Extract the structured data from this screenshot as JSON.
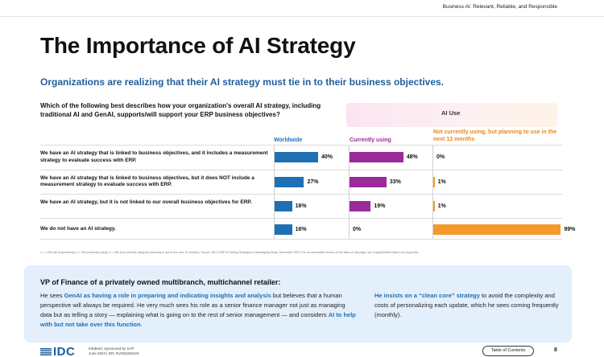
{
  "header": {
    "right_text": "Business AI: Relevant, Reliable, and Responsible"
  },
  "title": "The Importance of AI Strategy",
  "subtitle": "Organizations are realizing that their AI strategy must tie in to their business objectives.",
  "question": "Which of the following best describes how your organization's overall AI strategy, including traditional AI and GenAI, supports/will support your ERP business objectives?",
  "chart_data": {
    "type": "bar",
    "group_label": "AI Use",
    "categories": [
      "We have an AI strategy that is linked to business objectives, and it includes a measurement strategy to evaluate success with ERP.",
      "We have an AI strategy that is linked to business objectives, but it does NOT include a measurement strategy to evaluate success with ERP.",
      "We have an AI strategy, but it is not linked to our overall business objectives for ERP.",
      "We do not have an AI strategy."
    ],
    "series": [
      {
        "name": "Worldwide",
        "values": [
          40,
          27,
          16,
          16
        ],
        "labels": [
          "40%",
          "27%",
          "16%",
          "16%"
        ],
        "color": "#1f6fb4"
      },
      {
        "name": "Currently using",
        "values": [
          48,
          33,
          19,
          0
        ],
        "labels": [
          "48%",
          "33%",
          "19%",
          "0%"
        ],
        "color": "#9b2a9b"
      },
      {
        "name": "Not currently using, but planning to use in the next 12 months",
        "values": [
          0,
          1,
          1,
          99
        ],
        "labels": [
          "0%",
          "1%",
          "1%",
          "99%"
        ],
        "color": "#f39a2b"
      }
    ],
    "ylim": [
      0,
      100
    ]
  },
  "footnote": "n = 1,399 (all respondents); n = 920 (currently using); n = 399 (not currently using but planning to use in the next 12 months); Source: IDC's ERP AI Selling Strategies & Messaging Study, November 2023  |  For an accessible version of the data on this page, see Supplemental Data in the Appendix.",
  "panel": {
    "title": "VP of Finance of a privately owned multibranch, multichannel retailer:",
    "left": {
      "p1": "He sees ",
      "h1": "GenAI as having a role in preparing and indicating insights and analysis",
      "p2": " but believes that a human perspective will always be required. He very much sees his role as a senior finance manager not just as managing data but as telling a story — explaining what is going on to the rest of senior management — and considers ",
      "h2": "AI to help with but not take over this function",
      "p3": "."
    },
    "right": {
      "h1": "He insists on a “clean core” strategy",
      "p1": " to avoid the complexity and costs of personalizing each update, which he sees coming frequently (monthly)."
    }
  },
  "footer": {
    "logo": "IDC",
    "meta_line1": "InfoBrief, sponsored by SAP",
    "meta_line2": "June 2024  |  IDC #US52262424",
    "toc_label": "Table of Contents",
    "page_number": "8"
  }
}
